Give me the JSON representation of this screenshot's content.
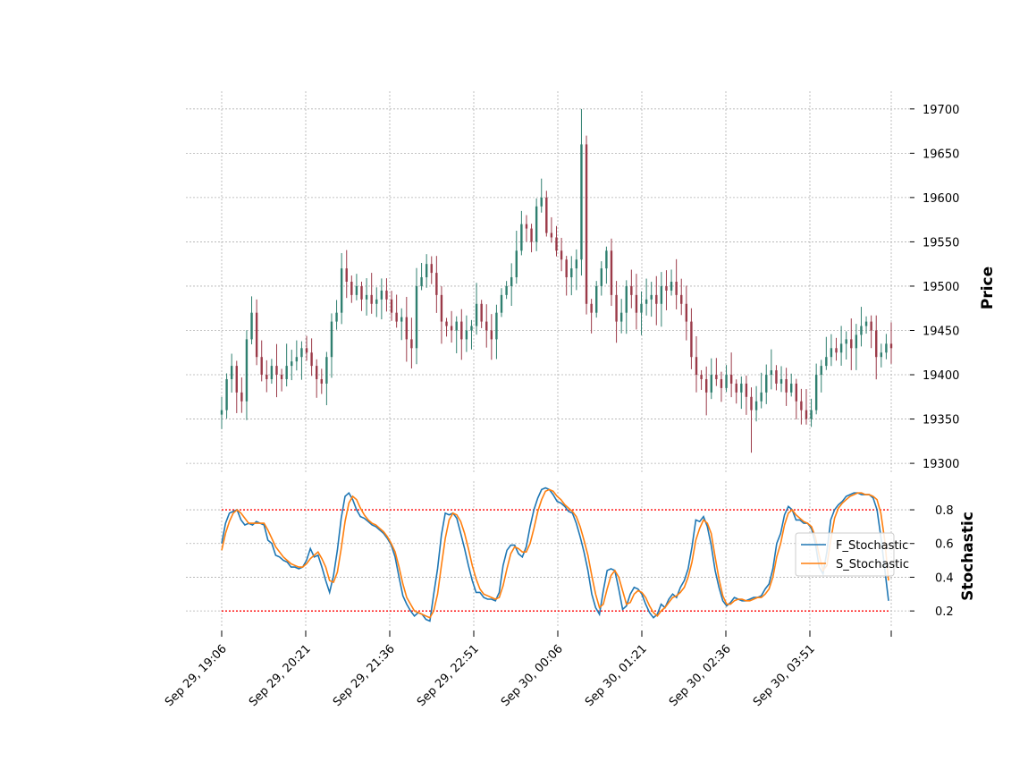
{
  "chart_data": [
    {
      "type": "candlestick",
      "ylabel": "Price",
      "ylim": [
        19290,
        19720
      ],
      "yticks": [
        19300,
        19350,
        19400,
        19450,
        19500,
        19550,
        19600,
        19650,
        19700
      ],
      "xticks": [
        "Sep 29, 19:06",
        "Sep 29, 20:21",
        "Sep 29, 21:36",
        "Sep 29, 22:51",
        "Sep 30, 00:06",
        "Sep 30, 01:21",
        "Sep 30, 02:36",
        "Sep 30, 03:51"
      ],
      "grid": true,
      "colors": {
        "up": "#2f7f6f",
        "down": "#9b3a48"
      },
      "close": [
        19360,
        19395,
        19410,
        19380,
        19370,
        19440,
        19470,
        19420,
        19400,
        19395,
        19410,
        19400,
        19395,
        19410,
        19415,
        19420,
        19430,
        19425,
        19410,
        19395,
        19390,
        19420,
        19460,
        19470,
        19520,
        19505,
        19490,
        19500,
        19485,
        19490,
        19480,
        19485,
        19495,
        19485,
        19470,
        19460,
        19465,
        19440,
        19430,
        19500,
        19510,
        19525,
        19515,
        19490,
        19460,
        19455,
        19450,
        19460,
        19440,
        19450,
        19455,
        19480,
        19460,
        19450,
        19440,
        19470,
        19490,
        19500,
        19510,
        19540,
        19570,
        19565,
        19550,
        19590,
        19600,
        19560,
        19555,
        19540,
        19530,
        19510,
        19520,
        19530,
        19660,
        19480,
        19470,
        19500,
        19520,
        19540,
        19490,
        19460,
        19470,
        19500,
        19490,
        19470,
        19480,
        19485,
        19490,
        19480,
        19500,
        19495,
        19505,
        19490,
        19480,
        19460,
        19420,
        19400,
        19395,
        19380,
        19400,
        19395,
        19385,
        19400,
        19390,
        19380,
        19390,
        19375,
        19360,
        19370,
        19380,
        19400,
        19405,
        19390,
        19395,
        19380,
        19390,
        19370,
        19360,
        19350,
        19360,
        19400,
        19410,
        19420,
        19430,
        19425,
        19435,
        19440,
        19430,
        19445,
        19455,
        19460,
        19450,
        19420,
        19425,
        19435,
        19430
      ],
      "extremes": {
        "high": 19700,
        "low": 19312
      }
    },
    {
      "type": "line",
      "ylabel": "Stochastic",
      "ylim": [
        0.1,
        0.97
      ],
      "yticks": [
        0.2,
        0.4,
        0.6,
        0.8
      ],
      "reference_lines": [
        0.2,
        0.8
      ],
      "reference_color": "#ff0000",
      "legend_position": "right",
      "series": [
        {
          "name": "F_Stochastic",
          "color": "#1f77b4",
          "values": [
            0.6,
            0.72,
            0.78,
            0.79,
            0.8,
            0.74,
            0.71,
            0.72,
            0.71,
            0.73,
            0.72,
            0.71,
            0.62,
            0.6,
            0.53,
            0.52,
            0.5,
            0.49,
            0.46,
            0.46,
            0.45,
            0.46,
            0.5,
            0.57,
            0.52,
            0.53,
            0.46,
            0.38,
            0.31,
            0.41,
            0.56,
            0.75,
            0.88,
            0.9,
            0.86,
            0.8,
            0.76,
            0.75,
            0.73,
            0.71,
            0.7,
            0.68,
            0.66,
            0.63,
            0.59,
            0.52,
            0.4,
            0.29,
            0.24,
            0.2,
            0.17,
            0.19,
            0.18,
            0.15,
            0.14,
            0.3,
            0.45,
            0.65,
            0.78,
            0.77,
            0.78,
            0.75,
            0.66,
            0.57,
            0.47,
            0.38,
            0.31,
            0.31,
            0.28,
            0.27,
            0.27,
            0.26,
            0.31,
            0.47,
            0.56,
            0.59,
            0.59,
            0.54,
            0.52,
            0.58,
            0.7,
            0.8,
            0.87,
            0.92,
            0.93,
            0.92,
            0.89,
            0.85,
            0.84,
            0.82,
            0.79,
            0.78,
            0.72,
            0.64,
            0.55,
            0.44,
            0.3,
            0.22,
            0.18,
            0.32,
            0.44,
            0.45,
            0.44,
            0.33,
            0.21,
            0.23,
            0.3,
            0.34,
            0.33,
            0.3,
            0.24,
            0.19,
            0.16,
            0.18,
            0.24,
            0.22,
            0.27,
            0.3,
            0.28,
            0.34,
            0.38,
            0.45,
            0.58,
            0.74,
            0.73,
            0.76,
            0.7,
            0.59,
            0.44,
            0.34,
            0.26,
            0.23,
            0.25,
            0.28,
            0.27,
            0.26,
            0.26,
            0.27,
            0.28,
            0.28,
            0.29,
            0.33,
            0.36,
            0.45,
            0.6,
            0.66,
            0.77,
            0.82,
            0.8,
            0.74,
            0.74,
            0.72,
            0.72,
            0.69,
            0.6,
            0.46,
            0.42,
            0.55,
            0.74,
            0.8,
            0.83,
            0.85,
            0.88,
            0.89,
            0.9,
            0.9,
            0.89,
            0.89,
            0.89,
            0.87,
            0.8,
            0.64,
            0.45,
            0.26
          ]
        },
        {
          "name": "S_Stochastic",
          "color": "#ff7f0e",
          "values": [
            0.56,
            0.66,
            0.73,
            0.78,
            0.8,
            0.78,
            0.75,
            0.72,
            0.72,
            0.72,
            0.72,
            0.72,
            0.68,
            0.63,
            0.58,
            0.55,
            0.52,
            0.5,
            0.48,
            0.47,
            0.46,
            0.46,
            0.48,
            0.51,
            0.53,
            0.55,
            0.51,
            0.46,
            0.38,
            0.37,
            0.43,
            0.57,
            0.73,
            0.84,
            0.88,
            0.86,
            0.81,
            0.77,
            0.74,
            0.72,
            0.71,
            0.69,
            0.67,
            0.64,
            0.6,
            0.55,
            0.46,
            0.36,
            0.28,
            0.24,
            0.2,
            0.19,
            0.18,
            0.17,
            0.16,
            0.2,
            0.3,
            0.47,
            0.63,
            0.74,
            0.78,
            0.77,
            0.73,
            0.66,
            0.57,
            0.47,
            0.39,
            0.33,
            0.3,
            0.29,
            0.28,
            0.27,
            0.28,
            0.35,
            0.45,
            0.54,
            0.58,
            0.57,
            0.55,
            0.55,
            0.6,
            0.69,
            0.79,
            0.86,
            0.91,
            0.92,
            0.91,
            0.88,
            0.86,
            0.83,
            0.81,
            0.79,
            0.76,
            0.7,
            0.62,
            0.53,
            0.41,
            0.3,
            0.22,
            0.24,
            0.33,
            0.41,
            0.44,
            0.4,
            0.32,
            0.24,
            0.25,
            0.3,
            0.32,
            0.31,
            0.28,
            0.23,
            0.19,
            0.17,
            0.2,
            0.22,
            0.25,
            0.28,
            0.29,
            0.31,
            0.34,
            0.4,
            0.49,
            0.62,
            0.69,
            0.74,
            0.72,
            0.66,
            0.52,
            0.39,
            0.29,
            0.24,
            0.24,
            0.26,
            0.27,
            0.27,
            0.26,
            0.26,
            0.27,
            0.28,
            0.28,
            0.3,
            0.33,
            0.4,
            0.52,
            0.6,
            0.71,
            0.78,
            0.8,
            0.77,
            0.75,
            0.73,
            0.72,
            0.7,
            0.64,
            0.53,
            0.44,
            0.47,
            0.62,
            0.75,
            0.81,
            0.84,
            0.86,
            0.88,
            0.89,
            0.9,
            0.9,
            0.89,
            0.89,
            0.88,
            0.86,
            0.78,
            0.62,
            0.38
          ]
        }
      ]
    }
  ]
}
